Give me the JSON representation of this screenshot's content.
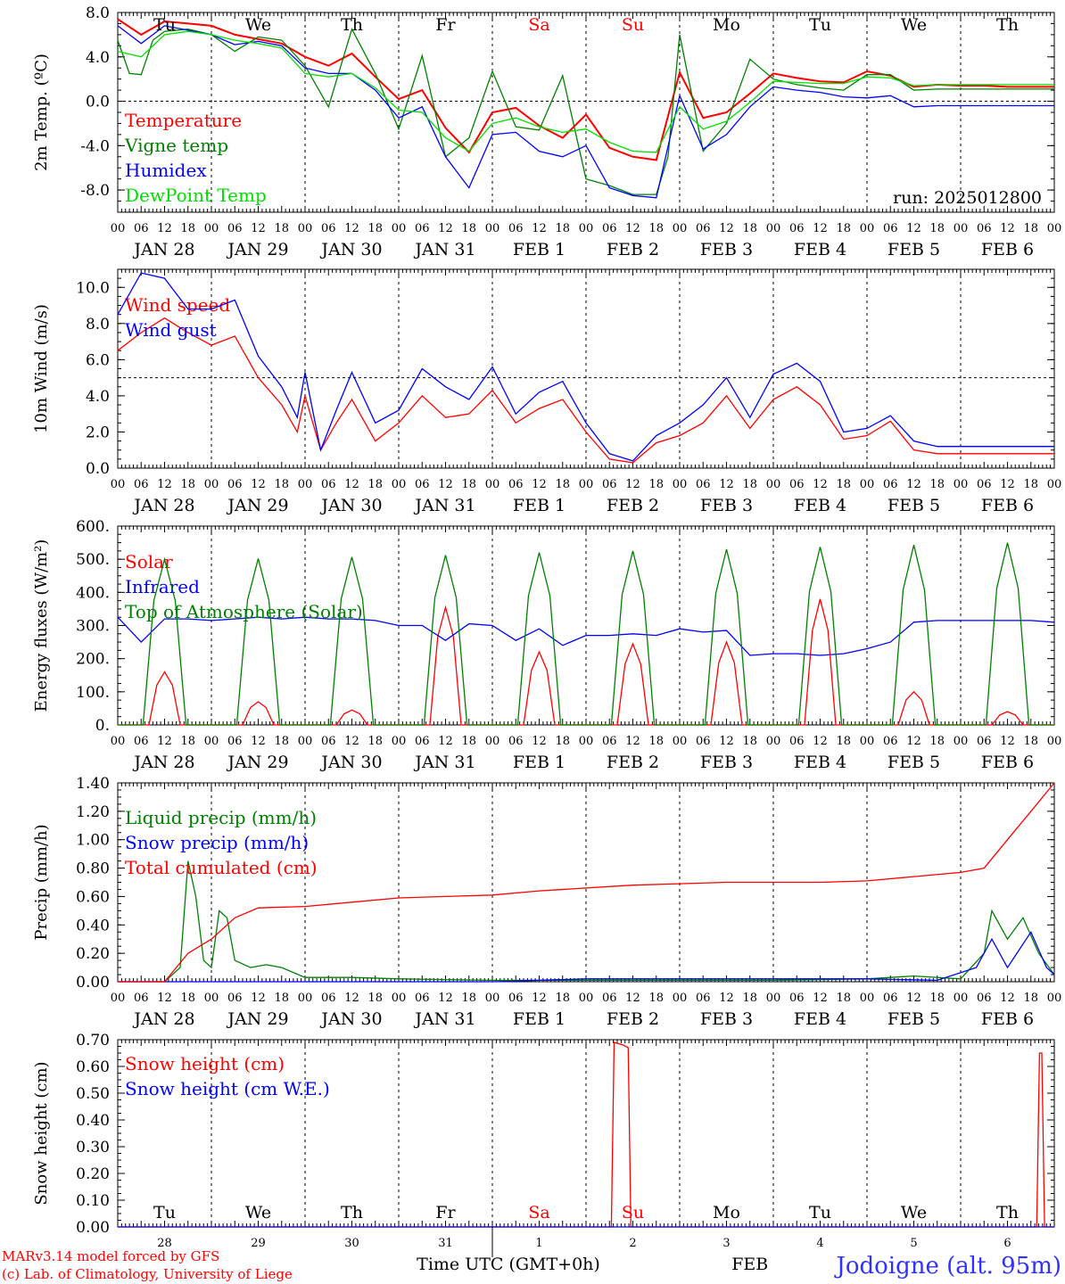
{
  "colors": {
    "red": "#ff0000",
    "green": "#008000",
    "blue": "#0000ff",
    "lime": "#00e000"
  },
  "days": [
    "Tu",
    "We",
    "Th",
    "Fr",
    "Sa",
    "Su",
    "Mo",
    "Tu",
    "We",
    "Th"
  ],
  "day_colors": [
    "#000000",
    "#000000",
    "#000000",
    "#000000",
    "#ff0000",
    "#ff0000",
    "#000000",
    "#000000",
    "#000000",
    "#000000"
  ],
  "date_labels": [
    "JAN 28",
    "JAN 29",
    "JAN 30",
    "JAN 31",
    "FEB  1",
    "FEB  2",
    "FEB  3",
    "FEB  4",
    "FEB  5",
    "FEB  6"
  ],
  "hour_labels": [
    "00",
    "06",
    "12",
    "18"
  ],
  "hour_label_end": "00",
  "bottom_day_numbers": [
    "28",
    "29",
    "30",
    "31",
    "1",
    "2",
    "3",
    "4",
    "5",
    "6"
  ],
  "bottom_month_label": "FEB",
  "xlabel": "Time UTC (GMT+0h)",
  "footer": {
    "model": "MARv3.14 model forced by GFS",
    "credit": "(c) Lab. of Climatology, University of Liege",
    "station": "Jodoigne (alt. 95m)"
  },
  "chart_data": [
    {
      "type": "line",
      "ylabel": "2m Temp. (ºC)",
      "ylim": [
        -10,
        8
      ],
      "yticks": [
        "8.0",
        "4.0",
        "0.0",
        "-4.0",
        "-8.0"
      ],
      "dashed_hline": 0,
      "annotation": "run: 2025012800",
      "x_unit": "hours since 2025-01-28 00 UTC",
      "series": [
        {
          "name": "Temperature",
          "color": "#ff0000",
          "x": [
            0,
            6,
            12,
            18,
            24,
            30,
            36,
            42,
            48,
            54,
            60,
            66,
            72,
            78,
            84,
            90,
            96,
            102,
            108,
            114,
            120,
            126,
            132,
            138,
            144,
            150,
            156,
            162,
            168,
            174,
            180,
            186,
            192,
            198,
            204,
            210,
            216,
            222,
            228,
            234,
            240
          ],
          "y": [
            7.4,
            6.0,
            7.2,
            7.0,
            6.8,
            6.0,
            5.6,
            5.2,
            4.0,
            3.2,
            4.3,
            2.2,
            0.2,
            1.0,
            -2.4,
            -4.6,
            -1.0,
            -0.6,
            -2.2,
            -3.3,
            -1.2,
            -4.2,
            -5.0,
            -5.3,
            2.6,
            -1.5,
            -1.0,
            0.7,
            2.5,
            2.1,
            1.8,
            1.7,
            2.7,
            2.3,
            1.3,
            1.5,
            1.4,
            1.4,
            1.3,
            1.3,
            1.3
          ]
        },
        {
          "name": "Vigne temp",
          "color": "#008000",
          "x": [
            0,
            3,
            6,
            9,
            12,
            18,
            24,
            30,
            36,
            42,
            48,
            54,
            60,
            66,
            72,
            78,
            84,
            90,
            96,
            102,
            108,
            114,
            120,
            126,
            132,
            138,
            141,
            144,
            150,
            156,
            162,
            168,
            174,
            180,
            186,
            192,
            198,
            204,
            210,
            216,
            222,
            228,
            234,
            240
          ],
          "y": [
            5.5,
            2.5,
            2.4,
            5.5,
            6.3,
            6.5,
            6.0,
            4.5,
            5.8,
            5.5,
            3.2,
            -0.5,
            6.5,
            2.5,
            -2.5,
            4.1,
            -5.0,
            -3.3,
            2.7,
            -2.3,
            -2.6,
            2.3,
            -7.0,
            -7.6,
            -8.4,
            -8.4,
            -5.0,
            6.0,
            -4.5,
            -2.0,
            3.8,
            2.0,
            1.5,
            1.2,
            1.0,
            2.4,
            2.4,
            1.0,
            1.1,
            1.1,
            1.1,
            1.1,
            1.1,
            1.1
          ]
        },
        {
          "name": "Humidex",
          "color": "#0000ff",
          "x": [
            0,
            6,
            12,
            18,
            24,
            30,
            36,
            42,
            48,
            54,
            60,
            66,
            72,
            78,
            84,
            90,
            96,
            102,
            108,
            114,
            120,
            126,
            132,
            138,
            144,
            150,
            156,
            162,
            168,
            174,
            180,
            186,
            192,
            198,
            204,
            210,
            216,
            222,
            228,
            234,
            240
          ],
          "y": [
            6.8,
            5.2,
            6.8,
            6.4,
            6.0,
            5.1,
            5.4,
            5.0,
            3.0,
            2.5,
            2.5,
            1.0,
            -1.5,
            -0.5,
            -5.0,
            -7.8,
            -3.0,
            -2.8,
            -4.5,
            -5.0,
            -4.0,
            -7.8,
            -8.5,
            -8.7,
            0.5,
            -4.3,
            -3.0,
            -0.5,
            1.3,
            1.0,
            0.8,
            0.4,
            0.3,
            0.5,
            -0.5,
            -0.4,
            -0.4,
            -0.4,
            -0.4,
            -0.4,
            -0.4
          ]
        },
        {
          "name": "DewPoint Temp",
          "color": "#00e000",
          "x": [
            0,
            6,
            12,
            18,
            24,
            30,
            36,
            42,
            48,
            54,
            60,
            66,
            72,
            78,
            84,
            90,
            96,
            102,
            108,
            114,
            120,
            126,
            132,
            138,
            144,
            150,
            156,
            162,
            168,
            174,
            180,
            186,
            192,
            198,
            204,
            210,
            216,
            222,
            228,
            234,
            240
          ],
          "y": [
            4.5,
            4.0,
            6.0,
            6.3,
            6.0,
            5.5,
            5.2,
            4.8,
            2.5,
            2.2,
            2.5,
            1.2,
            -0.8,
            -1.0,
            -3.3,
            -4.5,
            -2.0,
            -1.5,
            -2.3,
            -2.8,
            -2.5,
            -3.7,
            -4.5,
            -4.6,
            -0.5,
            -2.5,
            -1.8,
            -0.1,
            1.8,
            1.7,
            1.6,
            1.6,
            2.2,
            2.1,
            1.4,
            1.5,
            1.5,
            1.5,
            1.5,
            1.5,
            1.5
          ]
        }
      ]
    },
    {
      "type": "line",
      "ylabel": "10m Wind (m/s)",
      "ylim": [
        0,
        11
      ],
      "yticks": [
        "10.0",
        "8.0",
        "6.0",
        "4.0",
        "2.0",
        "0.0"
      ],
      "dashed_hline": 5,
      "x_unit": "hours since 2025-01-28 00 UTC",
      "series": [
        {
          "name": "Wind speed",
          "color": "#ff0000",
          "x": [
            0,
            6,
            12,
            18,
            24,
            30,
            36,
            42,
            46,
            48,
            52,
            56,
            60,
            66,
            72,
            78,
            84,
            90,
            96,
            102,
            108,
            114,
            120,
            126,
            132,
            138,
            144,
            150,
            156,
            162,
            168,
            174,
            180,
            186,
            192,
            198,
            204,
            210,
            216,
            222,
            228,
            234,
            240
          ],
          "y": [
            6.5,
            7.5,
            8.3,
            7.5,
            6.8,
            7.3,
            5.0,
            3.5,
            2.0,
            4.0,
            1.0,
            2.5,
            3.8,
            1.5,
            2.5,
            4.0,
            2.8,
            3.0,
            4.3,
            2.5,
            3.3,
            3.8,
            2.0,
            0.5,
            0.3,
            1.4,
            1.8,
            2.5,
            4.0,
            2.2,
            3.8,
            4.5,
            3.5,
            1.6,
            1.8,
            2.6,
            1.0,
            0.8,
            0.8,
            0.8,
            0.8,
            0.8,
            0.8
          ]
        },
        {
          "name": "Wind gust",
          "color": "#0000ff",
          "x": [
            0,
            6,
            12,
            18,
            24,
            30,
            36,
            42,
            46,
            48,
            52,
            56,
            60,
            66,
            72,
            78,
            84,
            90,
            96,
            102,
            108,
            114,
            120,
            126,
            132,
            138,
            144,
            150,
            156,
            162,
            168,
            174,
            180,
            186,
            192,
            198,
            204,
            210,
            216,
            222,
            228,
            234,
            240
          ],
          "y": [
            8.5,
            10.8,
            10.5,
            8.8,
            8.8,
            9.3,
            6.2,
            4.5,
            2.8,
            5.3,
            1.0,
            3.2,
            5.3,
            2.5,
            3.2,
            5.5,
            4.5,
            3.8,
            5.6,
            3.0,
            4.2,
            4.8,
            2.5,
            0.8,
            0.4,
            1.8,
            2.5,
            3.5,
            5.0,
            2.8,
            5.2,
            5.8,
            4.8,
            2.0,
            2.2,
            2.9,
            1.5,
            1.2,
            1.2,
            1.2,
            1.2,
            1.2,
            1.2
          ]
        }
      ]
    },
    {
      "type": "line",
      "ylabel": "Energy fluxes (W/m²)",
      "ylim": [
        0,
        600
      ],
      "yticks": [
        "600.",
        "500.",
        "400.",
        "300.",
        "200.",
        "100.",
        "0."
      ],
      "x_unit": "hours since 2025-01-28 00 UTC",
      "series": [
        {
          "name": "Solar",
          "color": "#ff0000",
          "peaks": [
            [
              12,
              160
            ],
            [
              36,
              70
            ],
            [
              60,
              45
            ],
            [
              84,
              355
            ],
            [
              108,
              220
            ],
            [
              132,
              245
            ],
            [
              156,
              250
            ],
            [
              180,
              380
            ],
            [
              204,
              100
            ],
            [
              228,
              40
            ]
          ]
        },
        {
          "name": "Infrared",
          "color": "#0000ff",
          "x": [
            0,
            6,
            12,
            18,
            24,
            30,
            36,
            42,
            48,
            54,
            60,
            66,
            72,
            78,
            84,
            90,
            96,
            102,
            108,
            114,
            120,
            126,
            132,
            138,
            144,
            150,
            156,
            162,
            168,
            174,
            180,
            186,
            192,
            198,
            204,
            210,
            216,
            222,
            228,
            234,
            240
          ],
          "y": [
            325,
            250,
            320,
            320,
            315,
            320,
            325,
            320,
            325,
            320,
            320,
            315,
            300,
            300,
            255,
            305,
            300,
            255,
            290,
            240,
            270,
            270,
            275,
            270,
            290,
            280,
            285,
            210,
            215,
            215,
            210,
            215,
            230,
            250,
            310,
            315,
            315,
            315,
            315,
            315,
            310
          ]
        },
        {
          "name": "Top of Atmosphere (Solar)",
          "color": "#008000",
          "peaks": [
            [
              12,
              500
            ],
            [
              36,
              502
            ],
            [
              60,
              507
            ],
            [
              84,
              512
            ],
            [
              108,
              520
            ],
            [
              132,
              525
            ],
            [
              156,
              530
            ],
            [
              180,
              537
            ],
            [
              204,
              543
            ],
            [
              228,
              550
            ]
          ]
        }
      ]
    },
    {
      "type": "line",
      "ylabel": "Precip (mm/h)",
      "ylim": [
        0,
        1.4
      ],
      "yticks": [
        "1.40",
        "1.20",
        "1.00",
        "0.80",
        "0.60",
        "0.40",
        "0.20",
        "0.00"
      ],
      "x_unit": "hours since 2025-01-28 00 UTC",
      "series": [
        {
          "name": "Liquid precip (mm/h)",
          "color": "#008000",
          "x": [
            0,
            12,
            16,
            18,
            20,
            22,
            24,
            26,
            28,
            30,
            34,
            38,
            42,
            48,
            60,
            72,
            96,
            120,
            144,
            168,
            192,
            204,
            216,
            222,
            224,
            228,
            232,
            236,
            240
          ],
          "y": [
            0,
            0,
            0.1,
            0.85,
            0.6,
            0.15,
            0.1,
            0.5,
            0.45,
            0.15,
            0.1,
            0.12,
            0.1,
            0.03,
            0.03,
            0.02,
            0.01,
            0.01,
            0.01,
            0.01,
            0.02,
            0.04,
            0.02,
            0.2,
            0.5,
            0.3,
            0.45,
            0.2,
            0.05
          ]
        },
        {
          "name": "Snow precip (mm/h)",
          "color": "#0000ff",
          "x": [
            0,
            96,
            120,
            192,
            210,
            220,
            224,
            228,
            234,
            238,
            240
          ],
          "y": [
            0,
            0,
            0.02,
            0.02,
            0.01,
            0.1,
            0.3,
            0.1,
            0.35,
            0.1,
            0.05
          ]
        },
        {
          "name": "Total cumulated (cm)",
          "color": "#ff0000",
          "x": [
            0,
            12,
            18,
            24,
            30,
            36,
            48,
            60,
            72,
            84,
            96,
            108,
            120,
            132,
            144,
            156,
            168,
            180,
            192,
            204,
            216,
            222,
            228,
            234,
            240
          ],
          "y": [
            0,
            0,
            0.2,
            0.3,
            0.45,
            0.52,
            0.53,
            0.56,
            0.59,
            0.6,
            0.61,
            0.64,
            0.66,
            0.68,
            0.69,
            0.7,
            0.7,
            0.7,
            0.71,
            0.74,
            0.77,
            0.8,
            1.0,
            1.2,
            1.4
          ]
        }
      ]
    },
    {
      "type": "line",
      "ylabel": "Snow height (cm)",
      "ylim": [
        0,
        0.7
      ],
      "yticks": [
        "0.70",
        "0.60",
        "0.50",
        "0.40",
        "0.30",
        "0.20",
        "0.10",
        "0.00"
      ],
      "x_unit": "hours since 2025-01-28 00 UTC",
      "series": [
        {
          "name": "Snow height (cm)",
          "color": "#ff0000",
          "x": [
            0,
            126.5,
            127.2,
            129.5,
            130.8,
            131.5,
            235.5,
            236.2,
            236.8,
            237.5,
            240
          ],
          "y": [
            0,
            0,
            0.69,
            0.68,
            0.67,
            0,
            0,
            0.65,
            0.65,
            0,
            0
          ]
        },
        {
          "name": "Snow height (cm W.E.)",
          "color": "#0000ff",
          "x": [
            0,
            240
          ],
          "y": [
            0,
            0
          ]
        }
      ]
    }
  ]
}
